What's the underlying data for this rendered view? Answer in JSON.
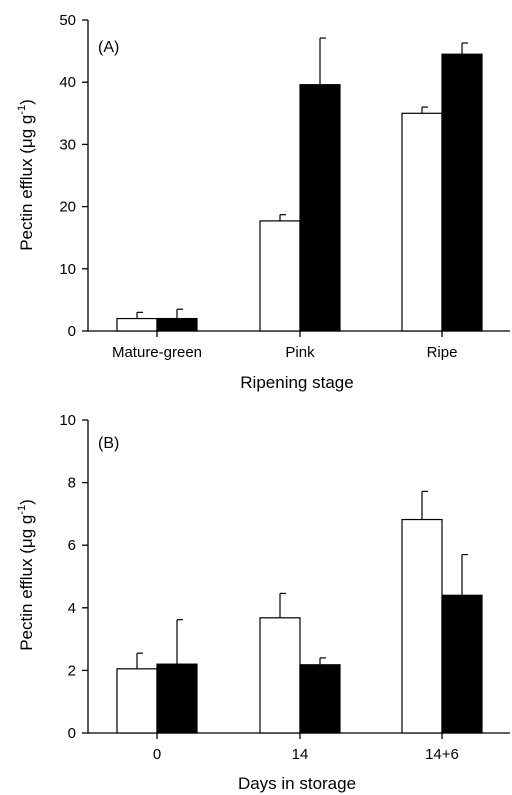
{
  "chart_data": [
    {
      "type": "bar",
      "panel_label": "(A)",
      "categories": [
        "Mature-green",
        "Pink",
        "Ripe"
      ],
      "series": [
        {
          "fill": "#ffffff",
          "values": [
            2.0,
            17.7,
            35.0
          ],
          "errors": [
            1.0,
            1.0,
            1.0
          ]
        },
        {
          "fill": "#000000",
          "values": [
            2.0,
            39.6,
            44.5
          ],
          "errors": [
            1.5,
            7.5,
            1.8
          ]
        }
      ],
      "xlabel": "Ripening stage",
      "ylabel": "Pectin efflux (μg g",
      "ylabel_sup": "-1",
      "ylabel_end": ")",
      "ylim": [
        0,
        50
      ],
      "yticks": [
        0,
        10,
        20,
        30,
        40,
        50
      ],
      "grid": false,
      "legend": "none"
    },
    {
      "type": "bar",
      "panel_label": "(B)",
      "categories": [
        "0",
        "14",
        "14+6"
      ],
      "series": [
        {
          "fill": "#ffffff",
          "values": [
            2.05,
            3.68,
            6.82
          ],
          "errors": [
            0.5,
            0.78,
            0.9
          ]
        },
        {
          "fill": "#000000",
          "values": [
            2.2,
            2.18,
            4.4
          ],
          "errors": [
            1.42,
            0.22,
            1.3
          ]
        }
      ],
      "xlabel": "Days in storage",
      "ylabel": "Pectin efflux (μg g",
      "ylabel_sup": "-1",
      "ylabel_end": ")",
      "ylim": [
        0,
        10
      ],
      "yticks": [
        0,
        2,
        4,
        6,
        8,
        10
      ],
      "grid": false,
      "legend": "none"
    }
  ]
}
